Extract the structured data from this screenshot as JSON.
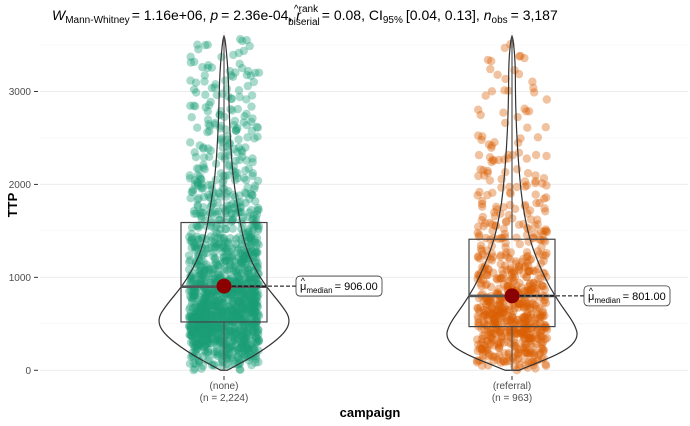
{
  "chart_data": {
    "type": "violin-box-scatter",
    "subtitle": {
      "w_sym": "W",
      "w_sub": "Mann-Whitney",
      "w_val": "= 1.16e+06, ",
      "p_sym": "p",
      "p_val": "= 2.36e-04, ",
      "r_sym": "r",
      "r_hat": "^",
      "r_sup": "rank",
      "r_sub": "biserial",
      "r_val": "= 0.08, ",
      "ci_sym": "CI",
      "ci_sub": "95%",
      "ci_val": "[0.04, 0.13], ",
      "n_sym": "n",
      "n_sub": "obs",
      "n_val": "= 3,187"
    },
    "xlabel": "campaign",
    "ylabel": "TTP",
    "ylim": [
      -40,
      3640
    ],
    "yticks": [
      0,
      1000,
      2000,
      3000
    ],
    "groups": [
      {
        "name": "(none)",
        "n_label": "(n = 2,224)",
        "color": "#1b9e77",
        "box": {
          "q1": 520,
          "median": 900,
          "q3": 1590,
          "min": 0,
          "max": 3600
        },
        "mean_median": 906,
        "label_hat": "^",
        "label_mu": "μ",
        "label_sub": "median",
        "label_val": "= 906.00",
        "violin": [
          [
            0,
            0.05
          ],
          [
            200,
            0.55
          ],
          [
            400,
            0.9
          ],
          [
            550,
            0.98
          ],
          [
            700,
            0.85
          ],
          [
            900,
            0.62
          ],
          [
            1100,
            0.45
          ],
          [
            1300,
            0.33
          ],
          [
            1500,
            0.26
          ],
          [
            1800,
            0.19
          ],
          [
            2100,
            0.13
          ],
          [
            2400,
            0.1
          ],
          [
            2700,
            0.08
          ],
          [
            3000,
            0.07
          ],
          [
            3200,
            0.06
          ],
          [
            3400,
            0.04
          ],
          [
            3600,
            0.01
          ]
        ]
      },
      {
        "name": "(referral)",
        "n_label": "(n = 963)",
        "color": "#d95f02",
        "box": {
          "q1": 470,
          "median": 800,
          "q3": 1410,
          "min": 0,
          "max": 3600
        },
        "mean_median": 801,
        "label_hat": "^",
        "label_mu": "μ",
        "label_sub": "median",
        "label_val": "= 801.00",
        "violin": [
          [
            0,
            0.1
          ],
          [
            200,
            0.78
          ],
          [
            350,
            0.98
          ],
          [
            500,
            0.92
          ],
          [
            700,
            0.72
          ],
          [
            900,
            0.55
          ],
          [
            1100,
            0.42
          ],
          [
            1300,
            0.31
          ],
          [
            1500,
            0.23
          ],
          [
            1800,
            0.15
          ],
          [
            2100,
            0.11
          ],
          [
            2400,
            0.08
          ],
          [
            2700,
            0.06
          ],
          [
            3000,
            0.05
          ],
          [
            3200,
            0.05
          ],
          [
            3400,
            0.04
          ],
          [
            3600,
            0.01
          ]
        ]
      }
    ]
  }
}
